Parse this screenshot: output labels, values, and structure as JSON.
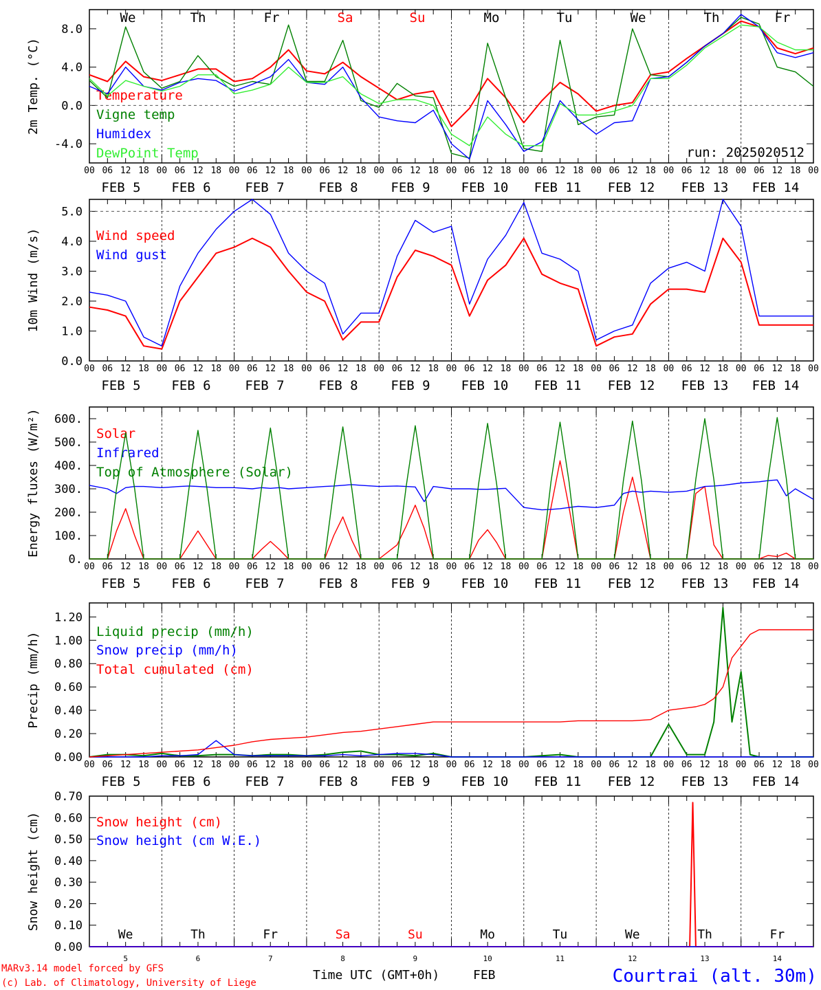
{
  "days": [
    {
      "label": "We",
      "color": "#000000",
      "date": "FEB  5",
      "num": "5"
    },
    {
      "label": "Th",
      "color": "#000000",
      "date": "FEB  6",
      "num": "6"
    },
    {
      "label": "Fr",
      "color": "#000000",
      "date": "FEB  7",
      "num": "7"
    },
    {
      "label": "Sa",
      "color": "#ff0000",
      "date": "FEB  8",
      "num": "8"
    },
    {
      "label": "Su",
      "color": "#ff0000",
      "date": "FEB  9",
      "num": "9"
    },
    {
      "label": "Mo",
      "color": "#000000",
      "date": "FEB 10",
      "num": "10"
    },
    {
      "label": "Tu",
      "color": "#000000",
      "date": "FEB 11",
      "num": "11"
    },
    {
      "label": "We",
      "color": "#000000",
      "date": "FEB 12",
      "num": "12"
    },
    {
      "label": "Th",
      "color": "#000000",
      "date": "FEB 13",
      "num": "13"
    },
    {
      "label": "Fr",
      "color": "#000000",
      "date": "FEB 14",
      "num": "14"
    }
  ],
  "hour_ticks": [
    "00",
    "06",
    "12",
    "18"
  ],
  "hour_end": "00",
  "run_label": "run: 2025020512",
  "footer": {
    "model": "MARv3.14 model forced by GFS",
    "lab": "(c) Lab. of Climatology, University of Liege",
    "xlabel": "Time UTC (GMT+0h)",
    "month": "FEB",
    "station": "Courtrai (alt. 30m)"
  },
  "colors": {
    "red": "#ff0000",
    "green": "#008000",
    "blue": "#0000ff",
    "lightgreen": "#33ee33",
    "grey": "#555555"
  },
  "chart_data": [
    {
      "type": "line",
      "ylabel": "2m Temp. (°C)",
      "ylim": [
        -6.0,
        10.0
      ],
      "yticks": [
        -4.0,
        0.0,
        4.0,
        8.0
      ],
      "yticklabels": [
        "-4.0",
        "0.0",
        "4.0",
        "8.0"
      ],
      "x_hours": [
        0,
        6,
        12,
        18,
        24,
        30,
        36,
        42,
        48,
        54,
        60,
        66,
        72,
        78,
        84,
        90,
        96,
        102,
        108,
        114,
        120,
        126,
        132,
        138,
        144,
        150,
        156,
        162,
        168,
        174,
        180,
        186,
        192,
        198,
        204,
        210,
        216,
        222,
        228,
        234,
        240
      ],
      "series": [
        {
          "name": "Temperature",
          "color": "#ff0000",
          "values": [
            3.2,
            2.5,
            4.6,
            3.0,
            2.6,
            3.2,
            3.8,
            3.8,
            2.5,
            2.8,
            4.0,
            5.8,
            3.6,
            3.3,
            4.5,
            3.0,
            1.8,
            0.6,
            1.2,
            1.5,
            -2.2,
            -0.3,
            2.8,
            0.8,
            -1.8,
            0.5,
            2.4,
            1.2,
            -0.6,
            0.0,
            0.3,
            3.2,
            3.5,
            4.9,
            6.2,
            7.5,
            8.8,
            8.2,
            6.0,
            5.4,
            6.0
          ]
        },
        {
          "name": "Vigne temp",
          "color": "#008000",
          "values": [
            2.6,
            0.8,
            8.2,
            3.5,
            1.8,
            2.5,
            5.2,
            3.0,
            2.0,
            2.5,
            2.2,
            8.4,
            2.5,
            2.5,
            6.8,
            0.5,
            -0.2,
            2.3,
            1.0,
            0.8,
            -5.0,
            -5.5,
            6.5,
            0.8,
            -4.5,
            -4.8,
            6.8,
            -2.0,
            -1.2,
            -1.0,
            8.0,
            3.2,
            3.0,
            4.5,
            6.2,
            7.5,
            9.2,
            8.5,
            4.0,
            3.5,
            2.0
          ]
        },
        {
          "name": "Humidex",
          "color": "#0000ff",
          "values": [
            2.0,
            1.2,
            4.0,
            2.0,
            1.6,
            2.4,
            2.8,
            2.6,
            1.5,
            2.2,
            3.0,
            4.8,
            2.4,
            2.2,
            4.0,
            0.8,
            -1.2,
            -1.6,
            -1.8,
            -0.5,
            -4.0,
            -5.6,
            0.5,
            -2.0,
            -4.8,
            -3.8,
            0.5,
            -1.5,
            -3.0,
            -1.8,
            -1.6,
            2.8,
            3.0,
            4.5,
            6.2,
            7.5,
            9.5,
            8.2,
            5.5,
            5.0,
            5.5
          ]
        },
        {
          "name": "DewPoint Temp",
          "color": "#33ee33",
          "values": [
            2.8,
            1.0,
            2.6,
            2.0,
            1.5,
            2.0,
            3.2,
            3.2,
            1.2,
            1.6,
            2.2,
            4.0,
            2.4,
            2.4,
            3.0,
            1.2,
            0.2,
            0.6,
            0.6,
            0.0,
            -3.0,
            -4.2,
            -1.2,
            -3.0,
            -4.2,
            -4.2,
            0.2,
            -1.0,
            -1.0,
            -0.6,
            0.0,
            2.8,
            2.8,
            4.2,
            6.0,
            7.2,
            8.4,
            8.2,
            6.6,
            5.8,
            5.8
          ]
        }
      ]
    },
    {
      "type": "line",
      "ylabel": "10m Wind (m/s)",
      "ylim": [
        0.0,
        5.4
      ],
      "yticks": [
        0.0,
        1.0,
        2.0,
        3.0,
        4.0,
        5.0
      ],
      "yticklabels": [
        "0.0",
        "1.0",
        "2.0",
        "3.0",
        "4.0",
        "5.0"
      ],
      "x_hours": [
        0,
        6,
        12,
        18,
        24,
        30,
        36,
        42,
        48,
        54,
        60,
        66,
        72,
        78,
        84,
        90,
        96,
        102,
        108,
        114,
        120,
        126,
        132,
        138,
        144,
        150,
        156,
        162,
        168,
        174,
        180,
        186,
        192,
        198,
        204,
        210,
        216,
        222,
        228,
        234,
        240
      ],
      "series": [
        {
          "name": "Wind speed",
          "color": "#ff0000",
          "values": [
            1.8,
            1.7,
            1.5,
            0.5,
            0.4,
            2.0,
            2.8,
            3.6,
            3.8,
            4.1,
            3.8,
            3.0,
            2.3,
            2.0,
            0.7,
            1.3,
            1.3,
            2.8,
            3.7,
            3.5,
            3.2,
            1.5,
            2.7,
            3.2,
            4.1,
            2.9,
            2.6,
            2.4,
            0.5,
            0.8,
            0.9,
            1.9,
            2.4,
            2.4,
            2.3,
            4.1,
            3.3,
            1.2,
            1.2,
            1.2,
            1.2
          ]
        },
        {
          "name": "Wind gust",
          "color": "#0000ff",
          "values": [
            2.3,
            2.2,
            2.0,
            0.8,
            0.5,
            2.5,
            3.6,
            4.4,
            5.0,
            5.4,
            4.9,
            3.6,
            3.0,
            2.6,
            0.9,
            1.6,
            1.6,
            3.5,
            4.7,
            4.3,
            4.5,
            1.9,
            3.4,
            4.2,
            5.3,
            3.6,
            3.4,
            3.0,
            0.7,
            1.0,
            1.2,
            2.6,
            3.1,
            3.3,
            3.0,
            5.4,
            4.5,
            1.5,
            1.5,
            1.5,
            1.5
          ]
        }
      ]
    },
    {
      "type": "line",
      "ylabel": "Energy fluxes (W/m²)",
      "ylim": [
        0,
        650
      ],
      "yticks": [
        0,
        100,
        200,
        300,
        400,
        500,
        600
      ],
      "yticklabels": [
        "0.",
        "100.",
        "200.",
        "300.",
        "400.",
        "500.",
        "600."
      ],
      "x_hours": [
        0,
        6,
        9,
        12,
        15,
        18,
        24,
        30,
        33,
        36,
        39,
        42,
        48,
        54,
        57,
        60,
        63,
        66,
        72,
        78,
        81,
        84,
        87,
        90,
        96,
        102,
        105,
        108,
        111,
        114,
        120,
        126,
        129,
        132,
        135,
        138,
        144,
        150,
        153,
        156,
        159,
        162,
        168,
        174,
        177,
        180,
        183,
        186,
        192,
        198,
        201,
        204,
        207,
        210,
        216,
        222,
        225,
        228,
        231,
        234,
        240
      ],
      "series": [
        {
          "name": "Solar",
          "color": "#ff0000",
          "values": [
            0,
            0,
            120,
            215,
            100,
            0,
            0,
            0,
            60,
            120,
            60,
            0,
            0,
            0,
            40,
            75,
            40,
            0,
            0,
            0,
            100,
            180,
            80,
            0,
            0,
            60,
            140,
            230,
            130,
            0,
            0,
            0,
            80,
            125,
            70,
            0,
            0,
            0,
            220,
            420,
            220,
            0,
            0,
            0,
            200,
            350,
            180,
            0,
            0,
            0,
            280,
            310,
            60,
            0,
            0,
            0,
            15,
            10,
            25,
            0,
            0
          ]
        },
        {
          "name": "Infrared",
          "color": "#0000ff",
          "values": [
            315,
            300,
            280,
            305,
            310,
            310,
            305,
            310,
            312,
            310,
            308,
            305,
            305,
            300,
            305,
            302,
            305,
            300,
            305,
            310,
            312,
            315,
            318,
            315,
            310,
            312,
            310,
            308,
            245,
            310,
            300,
            300,
            298,
            298,
            300,
            302,
            220,
            210,
            212,
            215,
            220,
            225,
            220,
            230,
            280,
            290,
            285,
            290,
            285,
            290,
            300,
            310,
            312,
            315,
            325,
            330,
            335,
            338,
            270,
            300,
            255
          ]
        },
        {
          "name": "Top of Atmosphere (Solar)",
          "color": "#008000",
          "values": [
            0,
            0,
            300,
            540,
            300,
            0,
            0,
            0,
            300,
            550,
            300,
            0,
            0,
            0,
            300,
            560,
            300,
            0,
            0,
            0,
            300,
            565,
            300,
            0,
            0,
            0,
            310,
            570,
            310,
            0,
            0,
            0,
            320,
            580,
            320,
            0,
            0,
            0,
            330,
            585,
            330,
            0,
            0,
            0,
            335,
            590,
            335,
            0,
            0,
            0,
            340,
            600,
            340,
            0,
            0,
            0,
            345,
            605,
            345,
            0,
            0
          ]
        }
      ]
    },
    {
      "type": "line",
      "ylabel": "Precip (mm/h)",
      "ylim": [
        0.0,
        1.32
      ],
      "yticks": [
        0.0,
        0.2,
        0.4,
        0.6,
        0.8,
        1.0,
        1.2
      ],
      "yticklabels": [
        "0.00",
        "0.20",
        "0.40",
        "0.60",
        "0.80",
        "1.00",
        "1.20"
      ],
      "x_hours": [
        0,
        6,
        12,
        18,
        24,
        30,
        36,
        42,
        48,
        54,
        60,
        66,
        72,
        78,
        84,
        90,
        96,
        102,
        108,
        114,
        120,
        126,
        132,
        138,
        144,
        150,
        156,
        162,
        168,
        174,
        180,
        186,
        192,
        198,
        201,
        204,
        207,
        210,
        213,
        216,
        219,
        222,
        228,
        234,
        240
      ],
      "series": [
        {
          "name": "Liquid precip (mm/h)",
          "color": "#008000",
          "values": [
            0,
            0.02,
            0.02,
            0.01,
            0.03,
            0.01,
            0.01,
            0.02,
            0.02,
            0.01,
            0.02,
            0.02,
            0.01,
            0.02,
            0.04,
            0.05,
            0.02,
            0.02,
            0.01,
            0.03,
            0,
            0,
            0,
            0,
            0,
            0.01,
            0.02,
            0,
            0,
            0,
            0,
            0,
            0.28,
            0.02,
            0.02,
            0.02,
            0.3,
            1.28,
            0.3,
            0.73,
            0.02,
            0,
            0,
            0,
            0
          ]
        },
        {
          "name": "Snow precip (mm/h)",
          "color": "#0000ff",
          "values": [
            0,
            0,
            0,
            0,
            0.01,
            0.01,
            0.02,
            0.14,
            0.02,
            0.01,
            0.01,
            0.01,
            0.01,
            0.01,
            0.02,
            0.01,
            0.02,
            0.03,
            0.03,
            0.02,
            0,
            0,
            0,
            0,
            0,
            0,
            0,
            0,
            0,
            0,
            0,
            0,
            0,
            0,
            0,
            0,
            0,
            0,
            0,
            0,
            0,
            0,
            0,
            0,
            0
          ]
        },
        {
          "name": "Total cumulated (cm)",
          "color": "#ff0000",
          "values": [
            0,
            0.01,
            0.02,
            0.03,
            0.04,
            0.05,
            0.06,
            0.08,
            0.1,
            0.13,
            0.15,
            0.16,
            0.17,
            0.19,
            0.21,
            0.22,
            0.24,
            0.26,
            0.28,
            0.3,
            0.3,
            0.3,
            0.3,
            0.3,
            0.3,
            0.3,
            0.3,
            0.31,
            0.31,
            0.31,
            0.31,
            0.32,
            0.4,
            0.42,
            0.43,
            0.45,
            0.5,
            0.6,
            0.85,
            0.95,
            1.05,
            1.09,
            1.09,
            1.09,
            1.09
          ]
        }
      ]
    },
    {
      "type": "line",
      "ylabel": "Snow height (cm)",
      "ylim": [
        0.0,
        0.7
      ],
      "yticks": [
        0.0,
        0.1,
        0.2,
        0.3,
        0.4,
        0.5,
        0.6,
        0.7
      ],
      "yticklabels": [
        "0.00",
        "0.10",
        "0.20",
        "0.30",
        "0.40",
        "0.50",
        "0.60",
        "0.70"
      ],
      "x_hours": [
        0,
        197,
        199,
        200,
        201,
        203,
        240
      ],
      "series": [
        {
          "name": "Snow height (cm)",
          "color": "#ff0000",
          "values": [
            0,
            0,
            0,
            0.67,
            0,
            0,
            0
          ]
        },
        {
          "name": "Snow height (cm W.E.)",
          "color": "#0000ff",
          "values": [
            0,
            0,
            0,
            0,
            0,
            0,
            0
          ]
        }
      ]
    }
  ]
}
